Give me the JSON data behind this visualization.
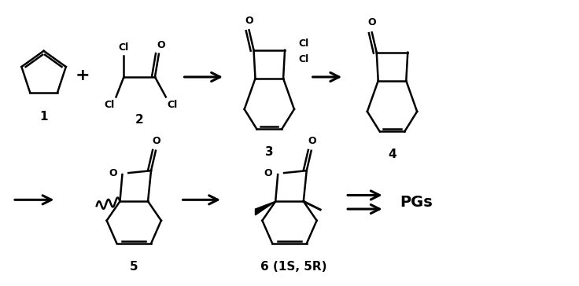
{
  "background_color": "#ffffff",
  "line_color": "#000000",
  "line_width": 1.8,
  "fig_width": 7.36,
  "fig_height": 3.64,
  "label_1": "1",
  "label_2": "2",
  "label_3": "3",
  "label_4": "4",
  "label_5": "5",
  "label_6": "6 (1S, 5R)",
  "label_PGs": "PGs",
  "plus_sign": "+",
  "font_size_labels": 11,
  "font_size_atoms": 9,
  "bold_labels": true
}
